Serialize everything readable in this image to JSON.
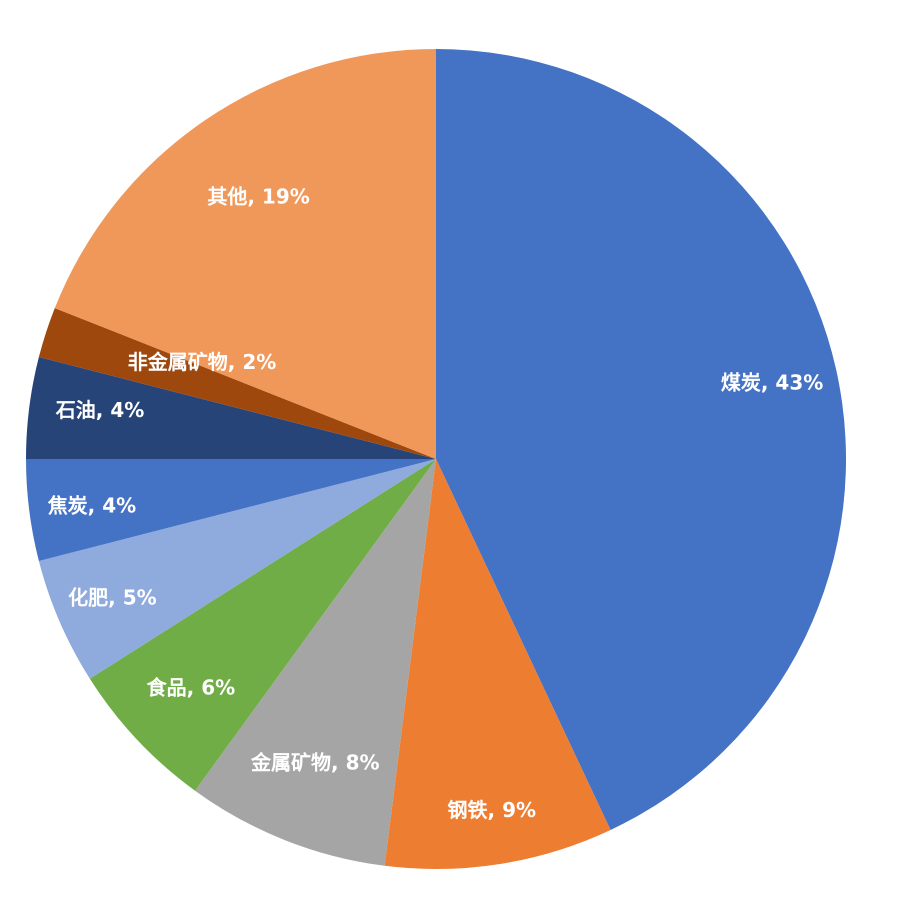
{
  "chart_data": {
    "type": "pie",
    "categories": [
      "煤炭",
      "钢铁",
      "金属矿物",
      "食品",
      "化肥",
      "焦炭",
      "石油",
      "非金属矿物",
      "其他"
    ],
    "values": [
      43,
      9,
      8,
      6,
      5,
      4,
      4,
      2,
      19
    ],
    "labels": [
      "煤炭, 43%",
      "钢铁, 9%",
      "金属矿物, 8%",
      "食品, 6%",
      "化肥, 5%",
      "焦炭, 4%",
      "石油, 4%",
      "非金属矿物, 2%",
      "其他, 19%"
    ],
    "colors": [
      "#4472C4",
      "#ED7D31",
      "#A5A5A5",
      "#70AD47",
      "#8FAADC",
      "#4472C4",
      "#264478",
      "#9E480E",
      "#F0985A"
    ],
    "start": "12 o'clock",
    "direction": "clockwise"
  }
}
